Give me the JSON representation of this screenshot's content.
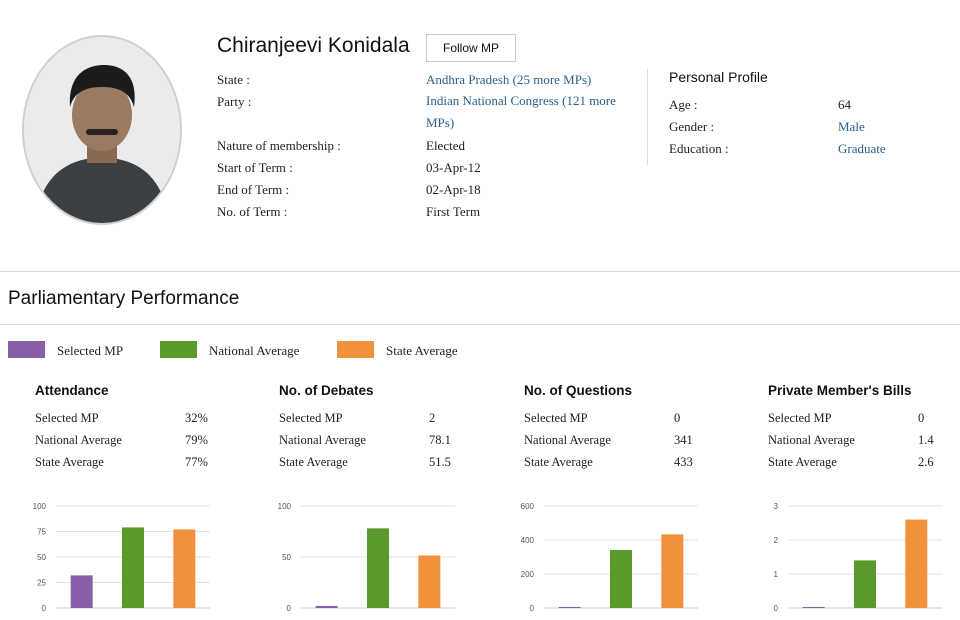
{
  "profile": {
    "name": "Chiranjeevi Konidala",
    "follow_label": "Follow MP",
    "fields": [
      {
        "label": "State :",
        "value": "Andhra Pradesh (25 more MPs)",
        "link": true
      },
      {
        "label": "Party :",
        "value": "Indian National Congress (121 more MPs)",
        "link": true
      },
      {
        "label": "Nature of membership :",
        "value": "Elected",
        "link": false
      },
      {
        "label": "Start of Term :",
        "value": "03-Apr-12",
        "link": false
      },
      {
        "label": "End of Term :",
        "value": "02-Apr-18",
        "link": false
      },
      {
        "label": "No. of Term :",
        "value": "First Term",
        "link": false
      }
    ],
    "personal": {
      "title": "Personal Profile",
      "rows": [
        {
          "label": "Age :",
          "value": "64",
          "link": false
        },
        {
          "label": "Gender :",
          "value": "Male",
          "link": true
        },
        {
          "label": "Education :",
          "value": "Graduate",
          "link": true
        }
      ]
    }
  },
  "performance": {
    "title": "Parliamentary Performance",
    "legend": [
      {
        "label": "Selected MP",
        "color": "#8860a8"
      },
      {
        "label": "National Average",
        "color": "#5a9a2c"
      },
      {
        "label": "State Average",
        "color": "#f2913c"
      }
    ]
  },
  "chart_data": [
    {
      "type": "bar",
      "title": "Attendance",
      "stats": [
        {
          "label": "Selected MP",
          "value": "32%"
        },
        {
          "label": "National Average",
          "value": "79%"
        },
        {
          "label": "State Average",
          "value": "77%"
        }
      ],
      "categories": [
        "Selected MP",
        "National Average",
        "State Average"
      ],
      "values": [
        32,
        79,
        77
      ],
      "ylim": [
        0,
        100
      ],
      "yticks": [
        0,
        25,
        50,
        75,
        100
      ]
    },
    {
      "type": "bar",
      "title": "No. of Debates",
      "stats": [
        {
          "label": "Selected MP",
          "value": "2"
        },
        {
          "label": "National Average",
          "value": "78.1"
        },
        {
          "label": "State Average",
          "value": "51.5"
        }
      ],
      "categories": [
        "Selected MP",
        "National Average",
        "State Average"
      ],
      "values": [
        2,
        78.1,
        51.5
      ],
      "ylim": [
        0,
        100
      ],
      "yticks": [
        0,
        50,
        100
      ]
    },
    {
      "type": "bar",
      "title": "No. of Questions",
      "stats": [
        {
          "label": "Selected MP",
          "value": "0"
        },
        {
          "label": "National Average",
          "value": "341"
        },
        {
          "label": "State Average",
          "value": "433"
        }
      ],
      "categories": [
        "Selected MP",
        "National Average",
        "State Average"
      ],
      "values": [
        0,
        341,
        433
      ],
      "ylim": [
        0,
        600
      ],
      "yticks": [
        0,
        200,
        400,
        600
      ]
    },
    {
      "type": "bar",
      "title": "Private Member's Bills",
      "stats": [
        {
          "label": "Selected MP",
          "value": "0"
        },
        {
          "label": "National Average",
          "value": "1.4"
        },
        {
          "label": "State Average",
          "value": "2.6"
        }
      ],
      "categories": [
        "Selected MP",
        "National Average",
        "State Average"
      ],
      "values": [
        0,
        1.4,
        2.6
      ],
      "ylim": [
        0,
        3
      ],
      "yticks": [
        0,
        1,
        2,
        3
      ]
    }
  ]
}
